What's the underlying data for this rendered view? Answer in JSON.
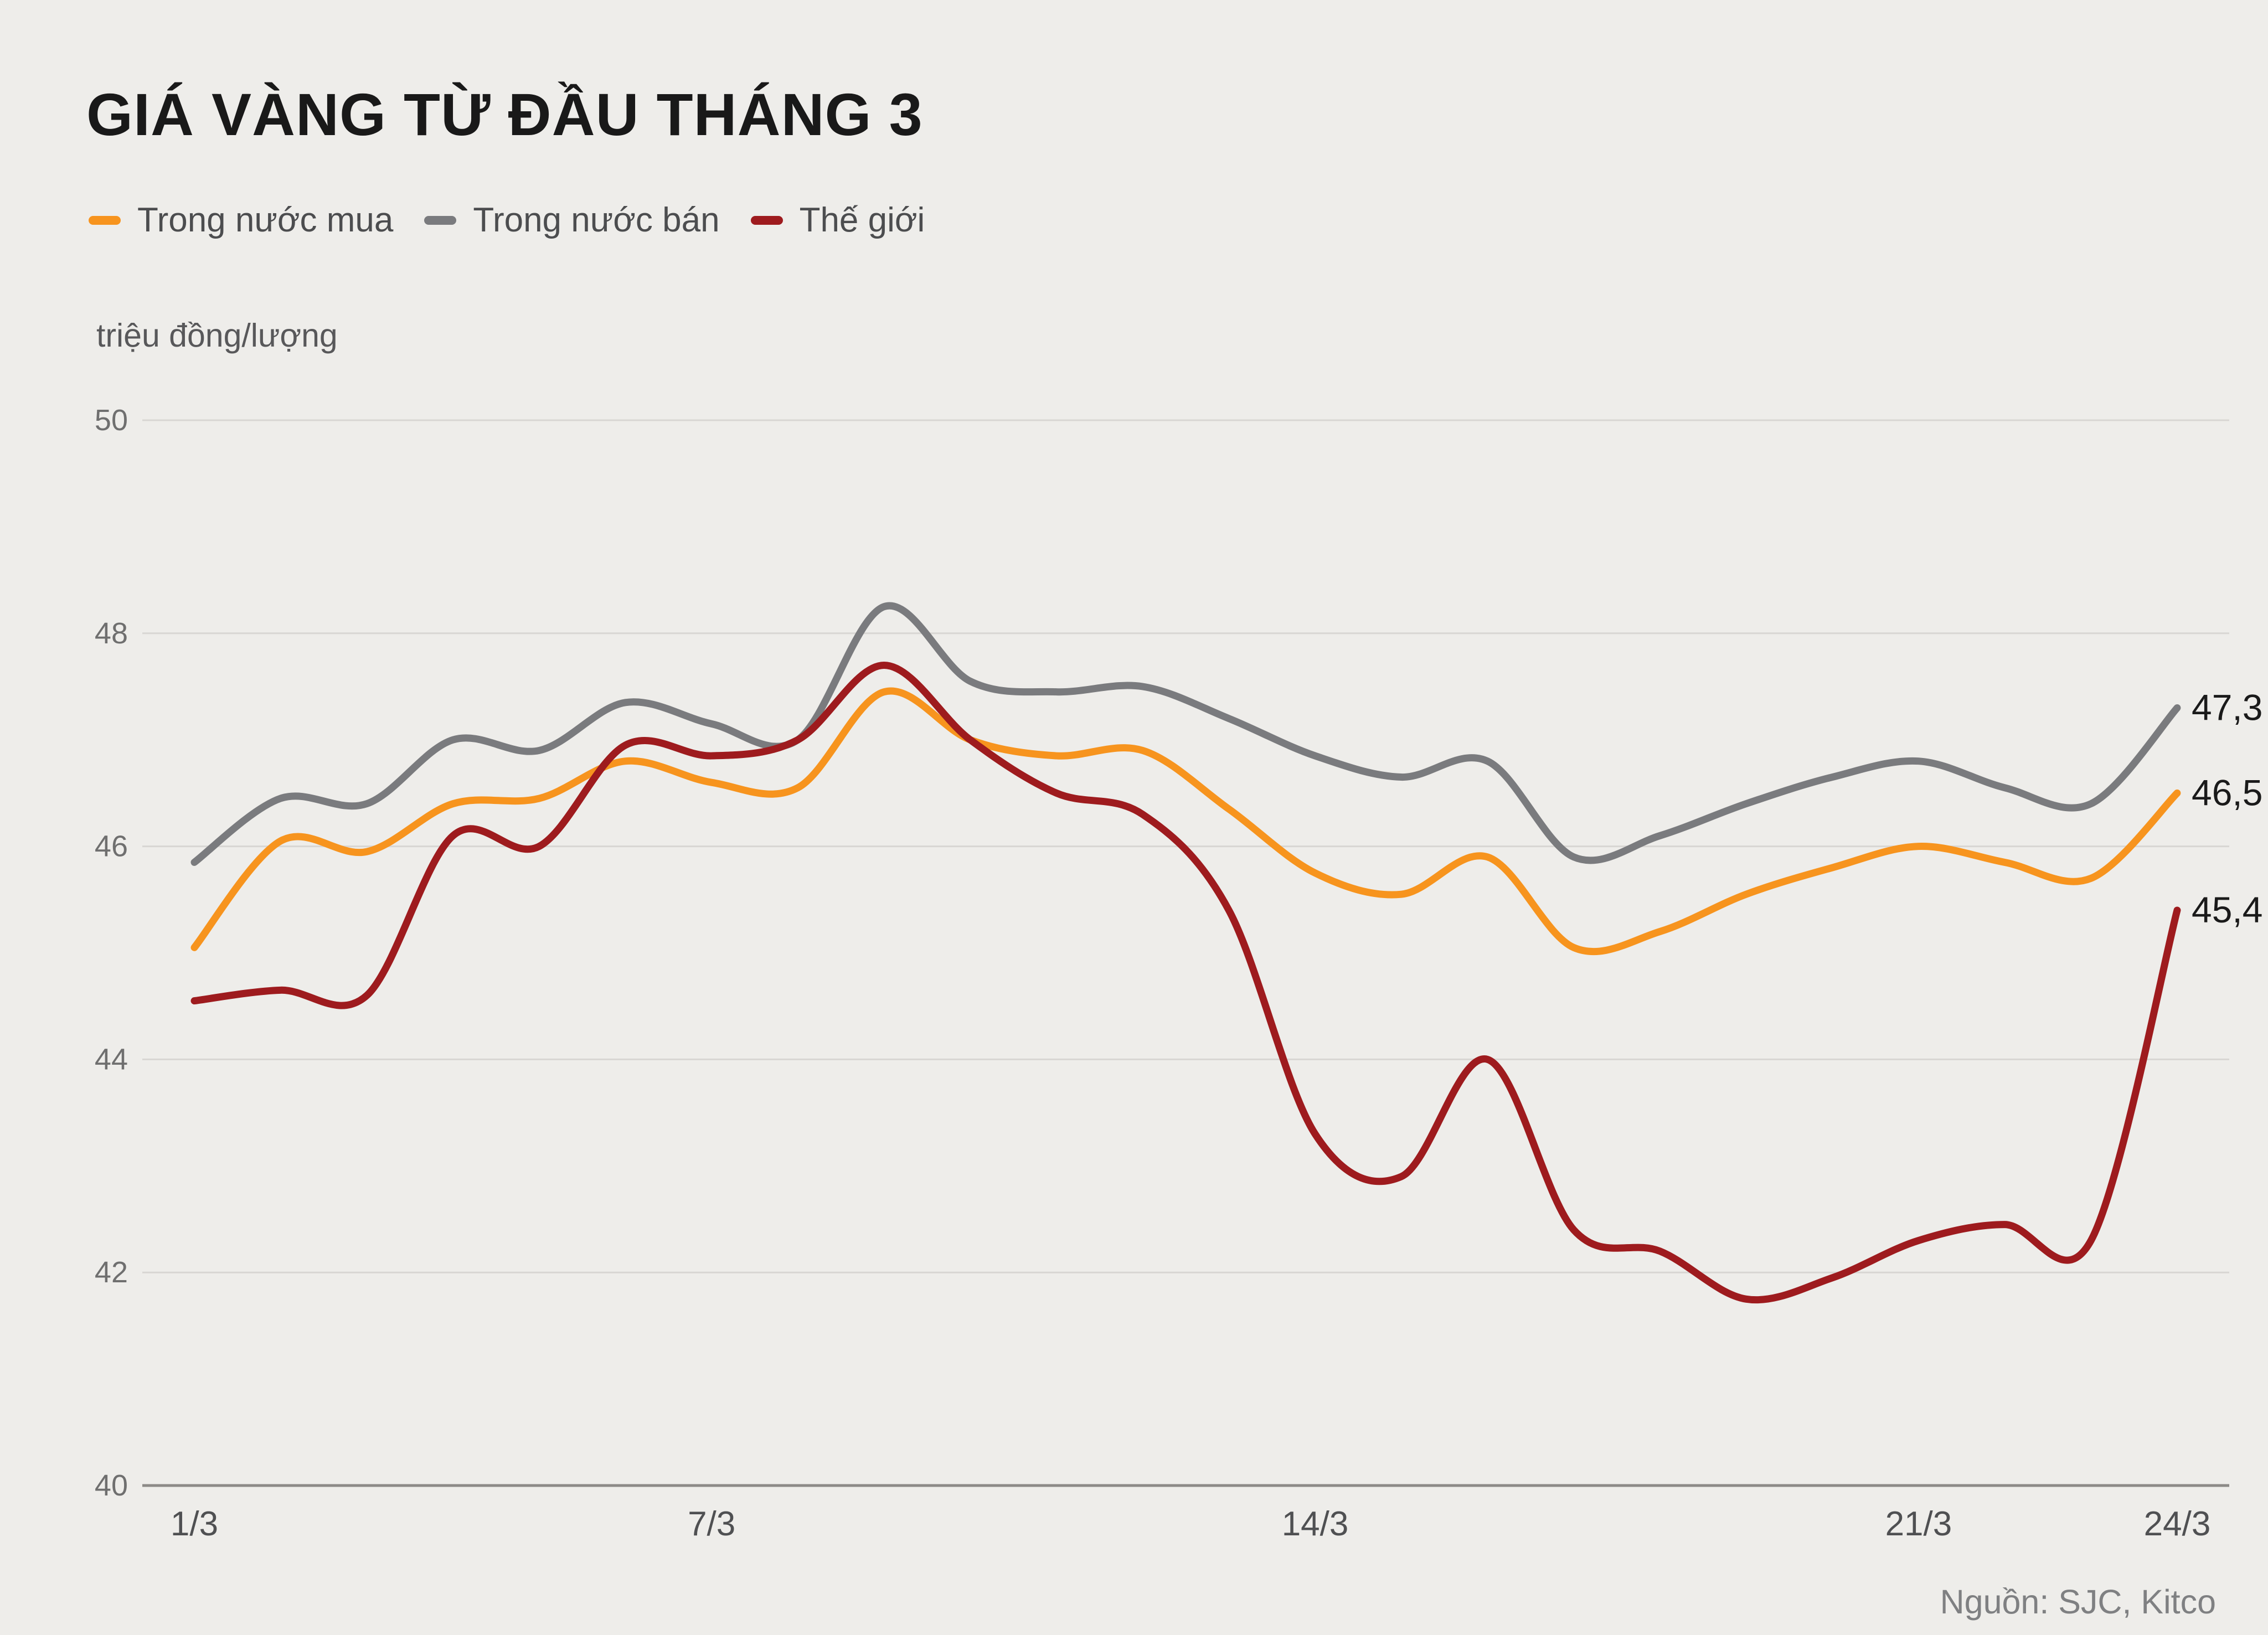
{
  "title": "GIÁ VÀNG TỪ ĐẦU THÁNG 3",
  "unit_label": "triệu đồng/lượng",
  "source": "Nguồn: SJC, Kitco",
  "colors": {
    "background": "#eeedea",
    "grid": "#d8d6d3",
    "axis": "#8c8a87",
    "tick_text": "#6f6f6f",
    "x_tick_text": "#4f5052",
    "end_label_text": "#1a1a1a"
  },
  "legend": [
    {
      "label": "Trong nước mua",
      "color": "#f7941e"
    },
    {
      "label": "Trong nước bán",
      "color": "#7a7b7e"
    },
    {
      "label": "Thế giới",
      "color": "#9e1b1e"
    }
  ],
  "end_labels": [
    {
      "text": "47,3",
      "value": 47.3,
      "series": "Trong nước bán"
    },
    {
      "text": "46,5",
      "value": 46.5,
      "series": "Trong nước mua"
    },
    {
      "text": "45,4",
      "value": 45.4,
      "series": "Thế giới"
    }
  ],
  "chart_data": {
    "type": "line",
    "title": "GIÁ VÀNG TỪ ĐẦU THÁNG 3",
    "ylabel": "triệu đồng/lượng",
    "x": [
      1,
      2,
      3,
      4,
      5,
      6,
      7,
      8,
      9,
      10,
      11,
      12,
      13,
      14,
      15,
      16,
      17,
      18,
      19,
      20,
      21,
      22,
      23,
      24
    ],
    "xlim": [
      1,
      24
    ],
    "ylim": [
      40,
      50
    ],
    "y_ticks": [
      40,
      42,
      44,
      46,
      48,
      50
    ],
    "x_ticks": [
      {
        "x": 1,
        "label": "1/3"
      },
      {
        "x": 7,
        "label": "7/3"
      },
      {
        "x": 14,
        "label": "14/3"
      },
      {
        "x": 21,
        "label": "21/3"
      },
      {
        "x": 24,
        "label": "24/3"
      }
    ],
    "grid": true,
    "legend_position": "top-left",
    "series": [
      {
        "name": "Trong nước mua",
        "color": "#f7941e",
        "values": [
          45.05,
          46.05,
          45.95,
          46.4,
          46.45,
          46.8,
          46.6,
          46.55,
          47.45,
          47.0,
          46.85,
          46.9,
          46.35,
          45.75,
          45.55,
          45.9,
          45.05,
          45.2,
          45.55,
          45.8,
          46.0,
          45.85,
          45.7,
          46.5
        ]
      },
      {
        "name": "Trong nước bán",
        "color": "#7a7b7e",
        "values": [
          45.85,
          46.45,
          46.4,
          47.0,
          46.9,
          47.35,
          47.15,
          47.0,
          48.25,
          47.55,
          47.45,
          47.5,
          47.2,
          46.85,
          46.65,
          46.8,
          45.9,
          46.1,
          46.4,
          46.65,
          46.8,
          46.55,
          46.4,
          47.3
        ]
      },
      {
        "name": "Thế giới",
        "color": "#9e1b1e",
        "values": [
          44.55,
          44.65,
          44.6,
          46.1,
          46.0,
          46.95,
          46.85,
          47.0,
          47.7,
          47.0,
          46.5,
          46.3,
          45.4,
          43.3,
          42.9,
          44.0,
          42.4,
          42.2,
          41.75,
          41.95,
          42.3,
          42.45,
          42.3,
          45.4
        ]
      }
    ]
  }
}
